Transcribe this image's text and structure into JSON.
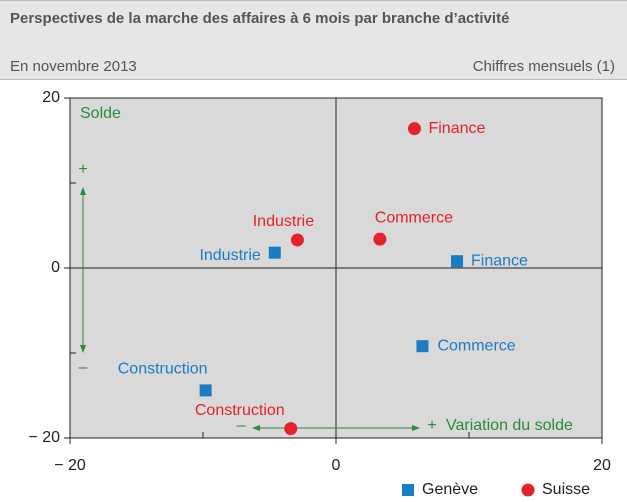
{
  "chart_data": {
    "type": "scatter",
    "title": "Perspectives de la marche des affaires à 6 mois par branche d’activité",
    "subtitle": "En novembre 2013",
    "note": "Chiffres mensuels (1)",
    "xlim": [
      -20,
      20
    ],
    "ylim": [
      -20,
      20
    ],
    "xticks": [
      {
        "value": -20,
        "label": "− 20"
      },
      0,
      20
    ],
    "yticks": [
      {
        "value": -20,
        "label": "− 20"
      },
      0,
      20
    ],
    "xticks_minor": [
      -10,
      10
    ],
    "yticks_minor": [
      -10,
      10
    ],
    "annotations": {
      "y_label": "Solde",
      "y_plus": "+",
      "y_minus": "–",
      "x_label": "Variation du solde",
      "x_plus": "+",
      "x_minus": "–"
    },
    "legend": "bottom-right",
    "series": [
      {
        "name": "Genève",
        "color": "#1a7cc1",
        "marker": "square",
        "labels": [
          "Industrie",
          "Finance",
          "Commerce",
          "Construction"
        ],
        "x": [
          -4.6,
          9.1,
          6.5,
          -9.8
        ],
        "values": [
          1.8,
          0.8,
          -9.2,
          -14.4
        ]
      },
      {
        "name": "Suisse",
        "color": "#e4222b",
        "marker": "circle",
        "labels": [
          "Industrie",
          "Commerce",
          "Finance",
          "Construction"
        ],
        "x": [
          -2.9,
          3.3,
          5.9,
          -3.4
        ],
        "values": [
          3.3,
          3.4,
          16.4,
          -18.9
        ]
      }
    ]
  }
}
